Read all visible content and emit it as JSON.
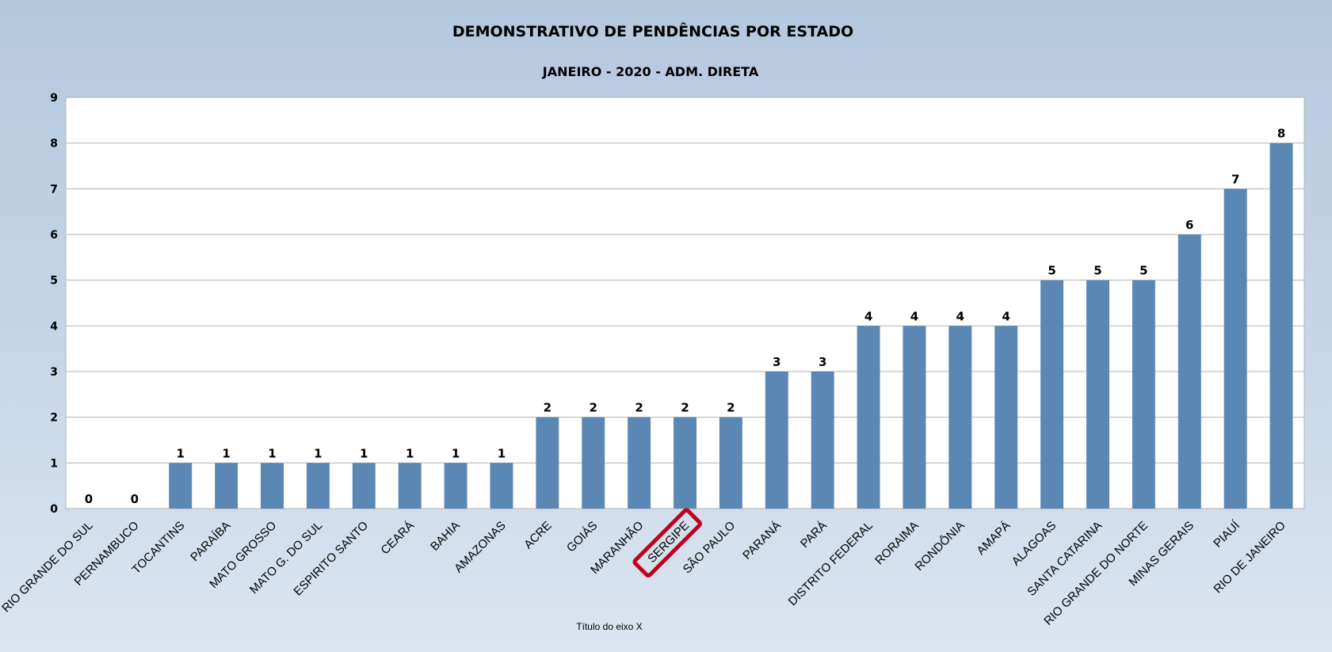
{
  "chart_data": {
    "type": "bar",
    "title": "DEMONSTRATIVO DE PENDÊNCIAS POR ESTADO",
    "subtitle": "JANEIRO - 2020 - ADM. DIRETA",
    "xlabel": "Título do eixo X",
    "ylabel": "",
    "ylim": [
      0,
      9
    ],
    "yticks": [
      "0",
      "1",
      "2",
      "3",
      "4",
      "5",
      "6",
      "7",
      "8",
      "9"
    ],
    "grid": true,
    "legend": "none",
    "categories": [
      "RIO GRANDE DO SUL",
      "PERNAMBUCO",
      "TOCANTINS",
      "PARAÍBA",
      "MATO GROSSO",
      "MATO G. DO SUL",
      "ESPIRITO SANTO",
      "CEARÁ",
      "BAHIA",
      "AMAZONAS",
      "ACRE",
      "GOIÁS",
      "MARANHÃO",
      "SERGIPE",
      "SÃO PAULO",
      "PARANÁ",
      "PARÁ",
      "DISTRITO FEDERAL",
      "RORAIMA",
      "RONDÔNIA",
      "AMAPÁ",
      "ALAGOAS",
      "SANTA CATARINA",
      "RIO GRANDE DO NORTE",
      "MINAS GERAIS",
      "PIAUÍ",
      "RIO DE JANEIRO"
    ],
    "values": [
      0,
      0,
      1,
      1,
      1,
      1,
      1,
      1,
      1,
      1,
      2,
      2,
      2,
      2,
      2,
      3,
      3,
      4,
      4,
      4,
      4,
      5,
      5,
      5,
      6,
      7,
      8
    ],
    "data_labels": [
      "0",
      "0",
      "1",
      "1",
      "1",
      "1",
      "1",
      "1",
      "1",
      "1",
      "2",
      "2",
      "2",
      "2",
      "2",
      "3",
      "3",
      "4",
      "4",
      "4",
      "4",
      "5",
      "5",
      "5",
      "6",
      "7",
      "8"
    ],
    "highlighted_category": "SERGIPE",
    "colors": {
      "bar": "#5b87b5",
      "highlight_box": "#c0001e",
      "grid": "#b3b3b3",
      "plot_bg": "#ffffff",
      "plot_border": "#b3b3b3"
    }
  }
}
